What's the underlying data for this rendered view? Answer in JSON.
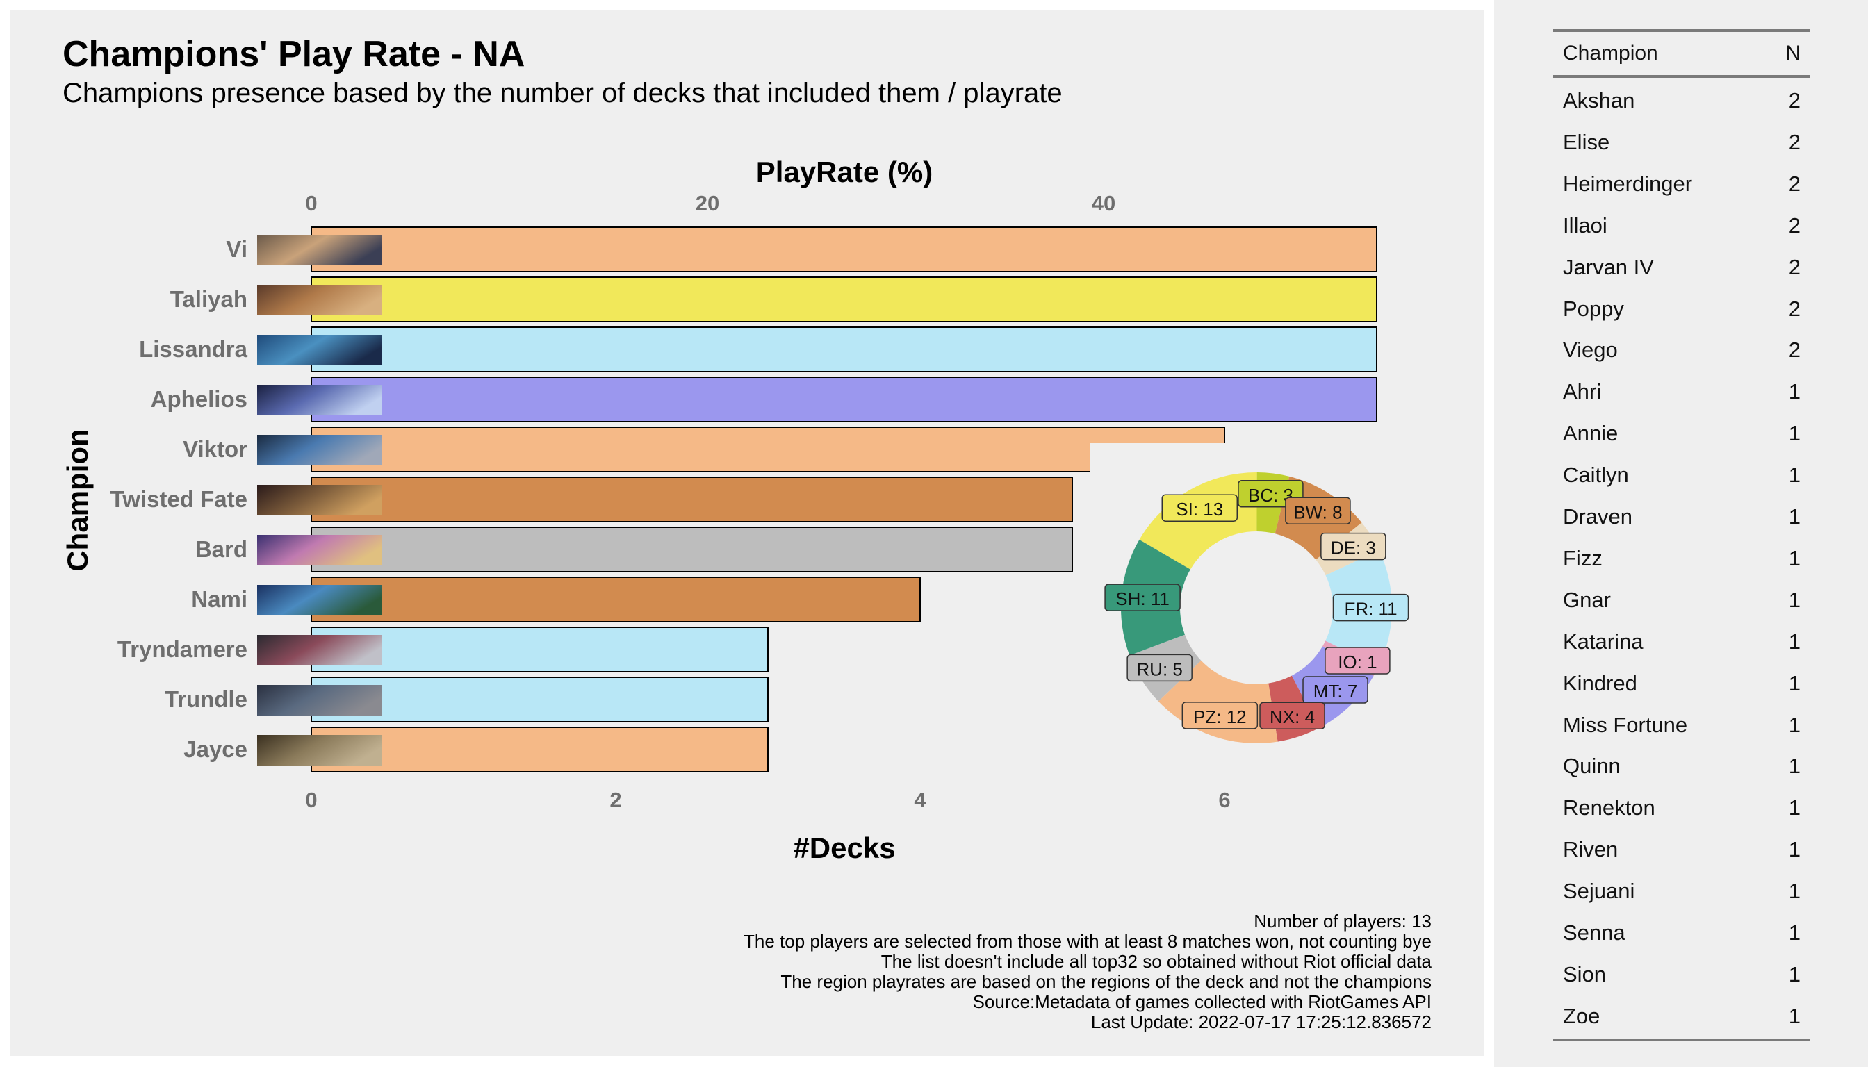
{
  "header": {
    "title": "Champions' Play Rate - NA",
    "subtitle": "Champions presence based by the number of decks that included them / playrate"
  },
  "chart_data": {
    "type": "bar",
    "orientation": "horizontal",
    "top_axis_label": "PlayRate (%)",
    "top_axis_ticks": [
      "0",
      "20",
      "40"
    ],
    "xlabel": "#Decks",
    "ylabel": "Champion",
    "x_ticks": [
      "0",
      "2",
      "4",
      "6"
    ],
    "xlim": [
      0,
      7
    ],
    "categories": [
      "Vi",
      "Taliyah",
      "Lissandra",
      "Aphelios",
      "Viktor",
      "Twisted Fate",
      "Bard",
      "Nami",
      "Tryndamere",
      "Trundle",
      "Jayce"
    ],
    "values": [
      7,
      7,
      7,
      7,
      6,
      5,
      5,
      4,
      3,
      3,
      3
    ],
    "bar_colors": [
      "#f5b987",
      "#f1e85a",
      "#b8e7f6",
      "#9b97ee",
      "#f5b987",
      "#d28b4f",
      "#bdbdbd",
      "#d28b4f",
      "#b8e7f6",
      "#b8e7f6",
      "#f5b987"
    ],
    "donut": {
      "type": "pie",
      "slices": [
        {
          "label": "SI: 13",
          "value": 13,
          "color": "#f1e85a"
        },
        {
          "label": "BC: 3",
          "value": 3,
          "color": "#bfd02e"
        },
        {
          "label": "BW: 8",
          "value": 8,
          "color": "#d28b4f"
        },
        {
          "label": "DE: 3",
          "value": 3,
          "color": "#ecdcc0"
        },
        {
          "label": "FR: 11",
          "value": 11,
          "color": "#b8e7f6"
        },
        {
          "label": "IO: 1",
          "value": 1,
          "color": "#e8a3bd"
        },
        {
          "label": "MT: 7",
          "value": 7,
          "color": "#9b97ee"
        },
        {
          "label": "NX: 4",
          "value": 4,
          "color": "#cd5c5c"
        },
        {
          "label": "PZ: 12",
          "value": 12,
          "color": "#f5b987"
        },
        {
          "label": "RU: 5",
          "value": 5,
          "color": "#bdbdbd"
        },
        {
          "label": "SH: 11",
          "value": 11,
          "color": "#38997a"
        }
      ]
    }
  },
  "caption": {
    "lines": [
      "Number of players: 13",
      "The top players are selected from those with at least 8 matches won, not counting bye",
      "The list doesn't include all top32 so obtained without Riot official data",
      "The region playrates are based on the regions of the deck and not the champions",
      "Source:Metadata of games collected with RiotGames API",
      "Last Update: 2022-07-17 17:25:12.836572"
    ]
  },
  "side_table": {
    "headers": [
      "Champion",
      "N"
    ],
    "rows": [
      [
        "Akshan",
        "2"
      ],
      [
        "Elise",
        "2"
      ],
      [
        "Heimerdinger",
        "2"
      ],
      [
        "Illaoi",
        "2"
      ],
      [
        "Jarvan IV",
        "2"
      ],
      [
        "Poppy",
        "2"
      ],
      [
        "Viego",
        "2"
      ],
      [
        "Ahri",
        "1"
      ],
      [
        "Annie",
        "1"
      ],
      [
        "Caitlyn",
        "1"
      ],
      [
        "Draven",
        "1"
      ],
      [
        "Fizz",
        "1"
      ],
      [
        "Gnar",
        "1"
      ],
      [
        "Katarina",
        "1"
      ],
      [
        "Kindred",
        "1"
      ],
      [
        "Miss Fortune",
        "1"
      ],
      [
        "Quinn",
        "1"
      ],
      [
        "Renekton",
        "1"
      ],
      [
        "Riven",
        "1"
      ],
      [
        "Sejuani",
        "1"
      ],
      [
        "Senna",
        "1"
      ],
      [
        "Sion",
        "1"
      ],
      [
        "Zoe",
        "1"
      ]
    ]
  },
  "thumbnail_colors": [
    [
      "#6b5a4a",
      "#c9a27a",
      "#3b3f55"
    ],
    [
      "#5a3a2a",
      "#b07a4a",
      "#d8b080"
    ],
    [
      "#1f4a7a",
      "#4a90c0",
      "#1a2a4a"
    ],
    [
      "#1a2040",
      "#5a6ab0",
      "#c0d0f0"
    ],
    [
      "#1a2a40",
      "#4a7ab0",
      "#a0a8b8"
    ],
    [
      "#2a1a1a",
      "#7a5a3a",
      "#d0a060"
    ],
    [
      "#3a3070",
      "#c07ab0",
      "#e0c080"
    ],
    [
      "#1a3060",
      "#4a8ac0",
      "#2a5a3a"
    ],
    [
      "#2a2a30",
      "#8a4a5a",
      "#c0c0c8"
    ],
    [
      "#2a3040",
      "#5a6a80",
      "#8a8a90"
    ],
    [
      "#3a3020",
      "#8a7a5a",
      "#c0b090"
    ]
  ]
}
